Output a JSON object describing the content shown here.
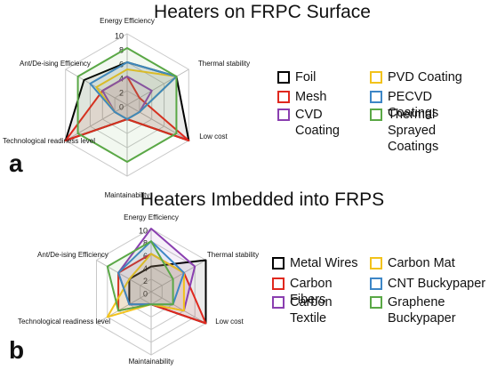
{
  "chart_data": [
    {
      "type": "radar",
      "title": "Heaters on FRPC Surface",
      "panel_label": "a",
      "categories": [
        "Energy Efficiency",
        "Thermal stability",
        "Low cost",
        "Maintainability",
        "Technological  readiness level",
        "Ant/De-ising Efficiency"
      ],
      "rlim": [
        0,
        10
      ],
      "rticks": [
        0,
        2,
        4,
        6,
        8,
        10
      ],
      "grid": true,
      "series": [
        {
          "name": "Foil",
          "color": "#000000",
          "values": [
            6,
            8,
            10,
            2,
            10,
            7
          ]
        },
        {
          "name": "Mesh",
          "color": "#e0281e",
          "values": [
            4,
            2,
            10,
            2,
            10,
            4
          ]
        },
        {
          "name": "CVD Coating",
          "color": "#8a3fb0",
          "values": [
            4,
            4,
            2,
            2,
            2,
            4
          ]
        },
        {
          "name": "PVD Coating",
          "color": "#f2c21b",
          "values": [
            5,
            8,
            2,
            2,
            2,
            5
          ]
        },
        {
          "name": "PECVD Coatings",
          "color": "#3d86c6",
          "values": [
            6,
            8,
            2,
            2,
            2,
            6
          ]
        },
        {
          "name": "Thermal Sprayed Coatings",
          "color": "#5aa846",
          "values": [
            8,
            8,
            8,
            8,
            8,
            8
          ]
        }
      ]
    },
    {
      "type": "radar",
      "title": "Heaters Imbedded into FRPS",
      "panel_label": "b",
      "categories": [
        "Energy Efficiency",
        "Thermal stability",
        "Low cost",
        "Maintainability",
        "Technological  readiness level",
        "Ant/De-ising Efficiency"
      ],
      "rlim": [
        0,
        10
      ],
      "rticks": [
        0,
        2,
        4,
        6,
        8,
        10
      ],
      "grid": true,
      "series": [
        {
          "name": "Metal Wires",
          "color": "#000000",
          "values": [
            4,
            10,
            10,
            2,
            4,
            4
          ]
        },
        {
          "name": "Carbon Fibers",
          "color": "#e0281e",
          "values": [
            6,
            6,
            10,
            2,
            6,
            6
          ]
        },
        {
          "name": "Carbon Textile",
          "color": "#8a3fb0",
          "values": [
            10,
            8,
            6,
            2,
            4,
            6
          ]
        },
        {
          "name": "Carbon Mat",
          "color": "#f2c21b",
          "values": [
            6,
            6,
            6,
            2,
            8,
            4
          ]
        },
        {
          "name": "CNT Buckypaper",
          "color": "#3d86c6",
          "values": [
            8,
            6,
            4,
            2,
            4,
            6
          ]
        },
        {
          "name": "Graphene Buckypaper",
          "color": "#5aa846",
          "values": [
            8,
            4,
            4,
            2,
            6,
            8
          ]
        }
      ]
    }
  ]
}
